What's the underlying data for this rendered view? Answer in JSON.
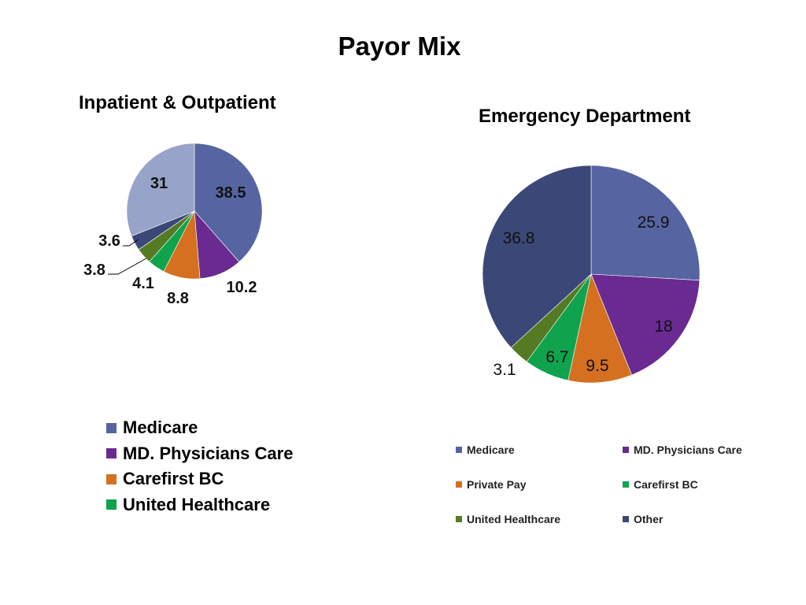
{
  "title": "Payor Mix",
  "colors": {
    "medicare": "#5665A1",
    "md_physicians": "#6A2A91",
    "private_pay": "#D47020",
    "carefirst": "#0FA34E",
    "united": "#547A24",
    "other_dark": "#3B4877",
    "other_light": "#98A3C9"
  },
  "chart_data": [
    {
      "type": "pie",
      "title": "Inpatient & Outpatient",
      "slices": [
        {
          "label": "Medicare",
          "value": 38.5,
          "display": "38.5",
          "color": "#5665A1"
        },
        {
          "label": "MD. Physicians Care",
          "value": 10.2,
          "display": "10.2",
          "color": "#6A2A91"
        },
        {
          "label": "Carefirst BC",
          "value": 8.8,
          "display": "8.8",
          "color": "#D47020"
        },
        {
          "label": "United Healthcare",
          "value": 4.1,
          "display": "4.1",
          "color": "#0FA34E"
        },
        {
          "label": "",
          "value": 3.8,
          "display": "3.8",
          "color": "#547A24"
        },
        {
          "label": "",
          "value": 3.6,
          "display": "3.6",
          "color": "#3B4877"
        },
        {
          "label": "",
          "value": 31,
          "display": "31",
          "color": "#98A3C9"
        }
      ],
      "legend": [
        "Medicare",
        "MD. Physicians Care",
        "Carefirst BC",
        "United Healthcare"
      ]
    },
    {
      "type": "pie",
      "title": "Emergency Department",
      "slices": [
        {
          "label": "Medicare",
          "value": 25.9,
          "display": "25.9",
          "color": "#5665A1"
        },
        {
          "label": "MD. Physicians Care",
          "value": 18,
          "display": "18",
          "color": "#6A2A91"
        },
        {
          "label": "Private Pay",
          "value": 9.5,
          "display": "9.5",
          "color": "#D47020"
        },
        {
          "label": "Carefirst BC",
          "value": 6.7,
          "display": "6.7",
          "color": "#0FA34E"
        },
        {
          "label": "United Healthcare",
          "value": 3.1,
          "display": "3.1",
          "color": "#547A24"
        },
        {
          "label": "Other",
          "value": 36.8,
          "display": "36.8",
          "color": "#3B4877"
        }
      ],
      "legend": [
        "Medicare",
        "MD. Physicians Care",
        "Private Pay",
        "Carefirst BC",
        "United Healthcare",
        "Other"
      ]
    }
  ]
}
